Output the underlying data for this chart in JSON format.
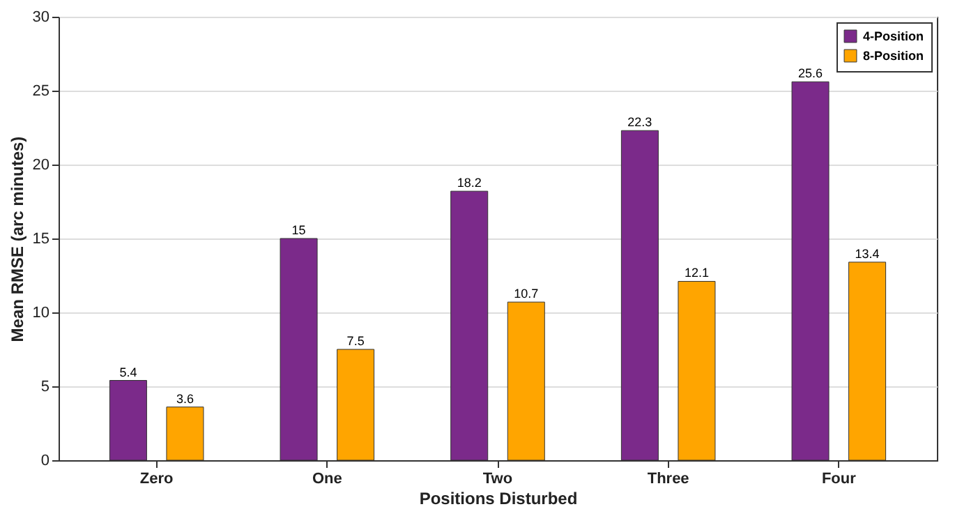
{
  "chart_data": {
    "type": "bar",
    "xlabel": "Positions Disturbed",
    "ylabel": "Mean RMSE (arc minutes)",
    "categories": [
      "Zero",
      "One",
      "Two",
      "Three",
      "Four"
    ],
    "series": [
      {
        "name": "4-Position",
        "color": "#7b2a8a",
        "values": [
          5.4,
          15,
          18.2,
          22.3,
          25.6
        ]
      },
      {
        "name": "8-Position",
        "color": "#ffa500",
        "values": [
          3.6,
          7.5,
          10.7,
          12.1,
          13.4
        ]
      }
    ],
    "ylim": [
      0,
      30
    ],
    "yticks": [
      0,
      5,
      10,
      15,
      20,
      25,
      30
    ],
    "grid": true,
    "legend": "top right",
    "data_labels": true
  }
}
